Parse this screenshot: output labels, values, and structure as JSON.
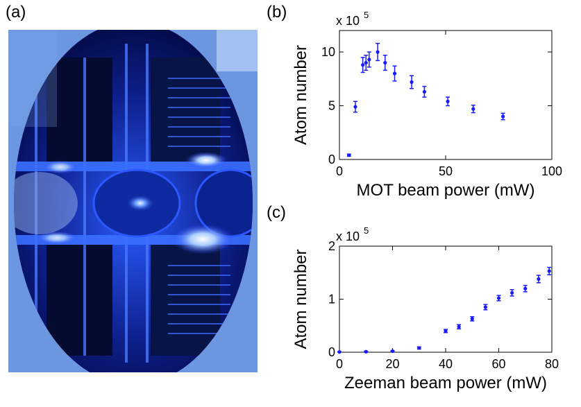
{
  "labels": {
    "a": "(a)",
    "b": "(b)",
    "c": "(c)"
  },
  "colors": {
    "marker": "#1a1aff"
  },
  "chart_data": [
    {
      "panel": "(b)",
      "type": "scatter",
      "xlabel": "MOT beam power (mW)",
      "ylabel": "Atom number",
      "multiplier": {
        "base": "x 10",
        "exp": "5"
      },
      "xlim": [
        0,
        100
      ],
      "ylim": [
        0,
        12
      ],
      "xticks": [
        0,
        50,
        100
      ],
      "yticks": [
        0,
        5,
        10
      ],
      "grid": false,
      "series": [
        {
          "x": [
            4.5,
            7.5,
            11,
            12.5,
            14,
            18,
            21.5,
            26,
            34,
            40,
            51,
            63,
            77
          ],
          "y": [
            0.4,
            4.9,
            8.8,
            9.0,
            9.3,
            10.0,
            9.0,
            8.0,
            7.2,
            6.3,
            5.4,
            4.7,
            4.0
          ],
          "yerr": [
            0.1,
            0.5,
            0.7,
            0.7,
            0.7,
            0.8,
            0.7,
            0.7,
            0.6,
            0.5,
            0.4,
            0.35,
            0.3
          ]
        }
      ]
    },
    {
      "panel": "(c)",
      "type": "scatter",
      "xlabel": "Zeeman beam power (mW)",
      "ylabel": "Atom number",
      "multiplier": {
        "base": "x 10",
        "exp": "5"
      },
      "xlim": [
        0,
        80
      ],
      "ylim": [
        0,
        2
      ],
      "xticks": [
        0,
        20,
        40,
        60,
        80
      ],
      "yticks": [
        0,
        1,
        2
      ],
      "grid": false,
      "series": [
        {
          "x": [
            0,
            10,
            20,
            30,
            40,
            45,
            50,
            55,
            60,
            65,
            70,
            75,
            79
          ],
          "y": [
            0.005,
            0.01,
            0.02,
            0.08,
            0.4,
            0.48,
            0.63,
            0.85,
            1.02,
            1.12,
            1.2,
            1.38,
            1.53
          ],
          "yerr": [
            0.005,
            0.01,
            0.01,
            0.02,
            0.03,
            0.04,
            0.04,
            0.05,
            0.05,
            0.06,
            0.06,
            0.07,
            0.07
          ]
        }
      ]
    }
  ]
}
